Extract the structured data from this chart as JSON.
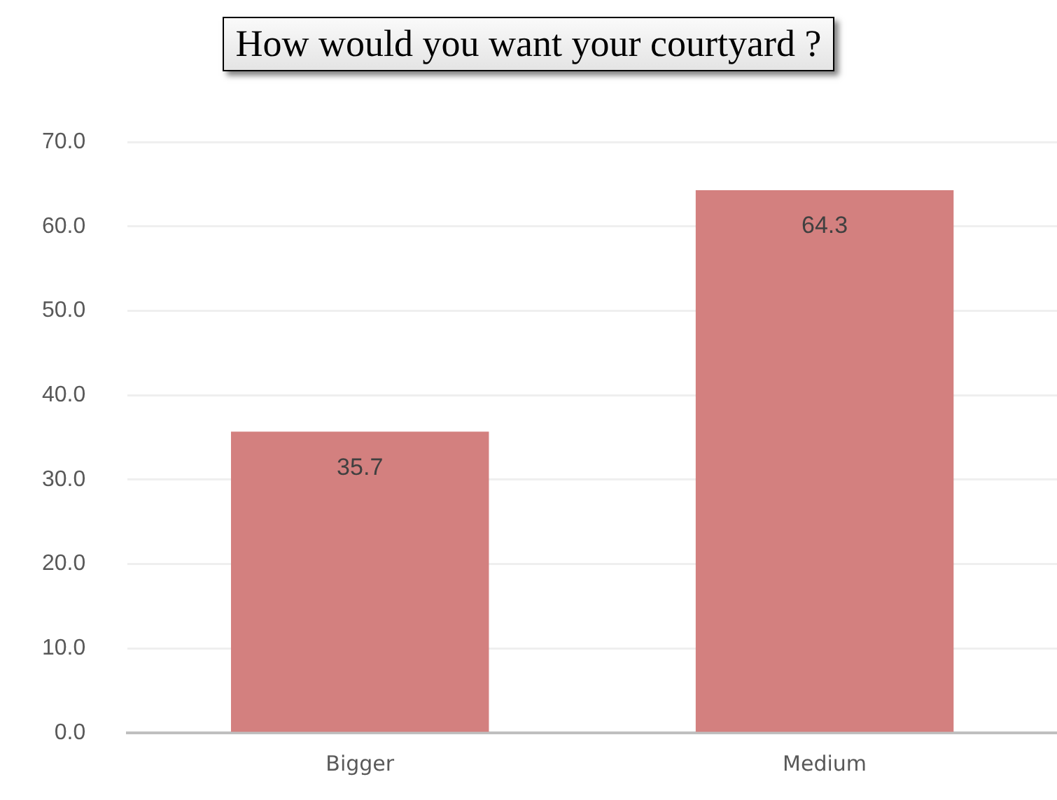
{
  "chart_data": {
    "type": "bar",
    "title": "How would you want your courtyard ?",
    "categories": [
      "Bigger",
      "Medium"
    ],
    "values": [
      35.7,
      64.3
    ],
    "color": "#d3807f",
    "ylim": [
      0,
      70
    ],
    "yticks": [
      {
        "value": 0,
        "label": "0.0"
      },
      {
        "value": 10,
        "label": "10.0"
      },
      {
        "value": 20,
        "label": "20.0"
      },
      {
        "value": 30,
        "label": "30.0"
      },
      {
        "value": 40,
        "label": "40.0"
      },
      {
        "value": 50,
        "label": "50.0"
      },
      {
        "value": 60,
        "label": "60.0"
      },
      {
        "value": 70,
        "label": "70.0"
      }
    ],
    "grid": "y",
    "data_labels": true,
    "legend": false
  }
}
